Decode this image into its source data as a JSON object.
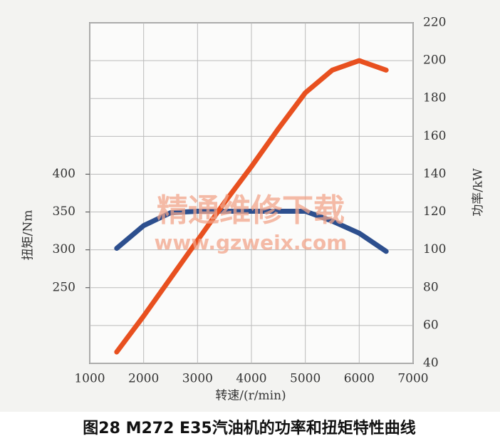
{
  "chart_data": {
    "type": "line",
    "title": "图28 M272 E35汽油机的功率和扭矩特性曲线",
    "x_label": "转速/(r/min)",
    "y_label": "扭矩/Nm",
    "y2_label": "功率/kW",
    "annotations": [
      "精通维修下载",
      "www.gzweix.com"
    ],
    "x": [
      1500,
      2000,
      2500,
      3000,
      3500,
      4000,
      4500,
      5000,
      5500,
      6000,
      6500
    ],
    "series": [
      {
        "name": "扭矩",
        "color": "#2d4f8e",
        "values": [
          302,
          332,
          349,
          351,
          351,
          351,
          351,
          351,
          338,
          322,
          298
        ]
      },
      {
        "name": "功率",
        "color": "#e8501f",
        "axis": "y2",
        "values": [
          46,
          65,
          85,
          105,
          125,
          144,
          164,
          183,
          195,
          200,
          195
        ]
      }
    ],
    "xlim": [
      1000,
      7000
    ],
    "xticks": [
      1000,
      2000,
      3000,
      4000,
      5000,
      6000,
      7000
    ],
    "ylim": [
      150,
      600
    ],
    "yticks": [
      250,
      300,
      350,
      400
    ],
    "y2lim": [
      40,
      220
    ],
    "y2ticks": [
      40,
      60,
      80,
      100,
      120,
      140,
      160,
      180,
      200,
      220
    ],
    "grid": true
  }
}
